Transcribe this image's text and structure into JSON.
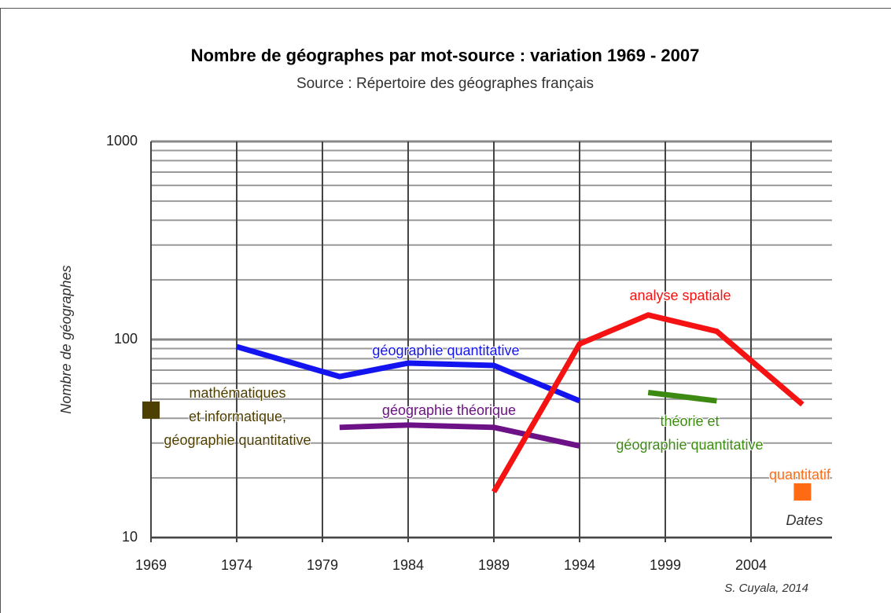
{
  "chart_data": {
    "type": "line",
    "title": "Nombre de géographes par mot-source : variation 1969 - 2007",
    "subtitle": "Source : Répertoire des géographes français",
    "y_label": "Nombre de géographes",
    "x_label": "Dates",
    "credit": "S. Cuyala, 2014",
    "log_y": true,
    "grid": true,
    "xlim": [
      1969,
      2009
    ],
    "xticks": [
      1969,
      1974,
      1979,
      1984,
      1989,
      1994,
      1999,
      2004
    ],
    "ylim": [
      10,
      1000
    ],
    "yticks": [
      10,
      100,
      1000
    ],
    "minor_yticks": [
      20,
      30,
      40,
      50,
      60,
      70,
      80,
      90,
      200,
      300,
      400,
      500,
      600,
      700,
      800,
      900
    ],
    "series": [
      {
        "name": "géographie quantitative",
        "color": "#1414f0",
        "x": [
          1974,
          1980,
          1984,
          1989,
          1994
        ],
        "values": [
          92,
          65,
          76,
          74,
          49
        ]
      },
      {
        "name": "géographie théorique",
        "color": "#6c1186",
        "x": [
          1980,
          1984,
          1989,
          1994
        ],
        "values": [
          36,
          37,
          36,
          29
        ]
      },
      {
        "name": "analyse spatiale",
        "color": "#f51212",
        "x": [
          1989,
          1994,
          1998,
          2002,
          2007
        ],
        "values": [
          17,
          95,
          133,
          110,
          47
        ]
      },
      {
        "name": "théorie et\ngéographie quantitative",
        "color": "#3c8a12",
        "x": [
          1998,
          2002
        ],
        "values": [
          54,
          49
        ]
      },
      {
        "name": "mathématiques\net informatique,\ngéographie quantitative",
        "color": "#4d3f00",
        "x": [
          1969
        ],
        "values": [
          44
        ]
      },
      {
        "name": "quantitatif",
        "color": "#ff6a12",
        "x": [
          2007
        ],
        "values": [
          17
        ]
      }
    ]
  }
}
